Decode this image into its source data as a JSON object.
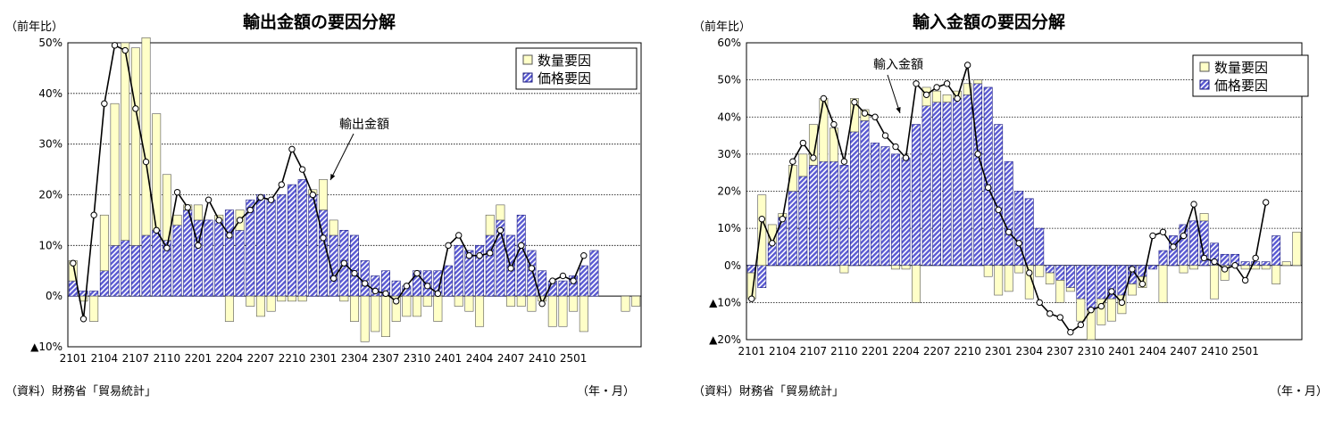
{
  "charts": [
    {
      "unit_label": "（前年比）",
      "source": "（資料）財務省「貿易統計」",
      "period_label": "（年・月）",
      "legend": [
        "数量要因",
        "価格要因"
      ],
      "annotation": "輸出金額"
    },
    {
      "unit_label": "（前年比）",
      "source": "（資料）財務省「貿易統計」",
      "period_label": "（年・月）",
      "legend": [
        "数量要因",
        "価格要因"
      ],
      "annotation": "輸入金額"
    }
  ],
  "colors": {
    "volume_fill": "#ffffc8",
    "price_fill": "#5a5ad2",
    "line": "#000000"
  },
  "chart_data": [
    {
      "type": "bar",
      "title": "輸出金額の要因分解",
      "x_tick_labels": [
        "2101",
        "2104",
        "2107",
        "2110",
        "2201",
        "2204",
        "2207",
        "2210",
        "2301",
        "2304",
        "2307",
        "2310",
        "2401",
        "2404",
        "2407",
        "2410",
        "2501"
      ],
      "ylim": [
        -10,
        50
      ],
      "y_ticks": [
        -10,
        0,
        10,
        20,
        30,
        40,
        50
      ],
      "y_tick_labels": [
        "▲10%",
        "0%",
        "10%",
        "20%",
        "30%",
        "40%",
        "50%"
      ],
      "grid": true,
      "legend_position": "top-right",
      "series": [
        {
          "name": "数量要因",
          "type": "bar",
          "values": [
            4,
            -1,
            -5,
            11,
            28,
            39,
            39,
            39,
            23,
            13,
            2,
            1,
            3,
            0,
            1,
            -5,
            4,
            -2,
            -4,
            -3,
            -1,
            -1,
            -1,
            1,
            6,
            3,
            -1,
            -5,
            -9,
            -7,
            -8,
            -5,
            -4,
            -4,
            -2,
            -5,
            0,
            -2,
            -3,
            -6,
            4,
            3,
            -2,
            -2,
            -3,
            -1,
            -6,
            -6,
            -3,
            -7,
            0,
            0,
            0,
            -3,
            -2
          ]
        },
        {
          "name": "価格要因",
          "type": "bar",
          "values": [
            3,
            1,
            1,
            5,
            10,
            11,
            10,
            12,
            13,
            11,
            14,
            17,
            15,
            15,
            15,
            17,
            13,
            19,
            20,
            19,
            20,
            22,
            23,
            20,
            17,
            12,
            13,
            12,
            7,
            4,
            5,
            3,
            2,
            5,
            5,
            5,
            6,
            10,
            9,
            10,
            12,
            15,
            12,
            16,
            9,
            5,
            3,
            3,
            4,
            6,
            9
          ]
        },
        {
          "name": "輸出金額",
          "type": "line",
          "values": [
            6.5,
            -4.5,
            16,
            38,
            49.5,
            48.5,
            37,
            26.5,
            13,
            9.5,
            20.5,
            17.5,
            10,
            19,
            15,
            12,
            15,
            17,
            19.5,
            19,
            22,
            29,
            25,
            20,
            11.5,
            3.5,
            6.5,
            4.5,
            2.5,
            1,
            0.5,
            -1,
            2,
            4.5,
            2,
            0.5,
            10,
            12,
            8,
            8,
            8.5,
            13,
            5.5,
            10,
            5.5,
            -1.5,
            3,
            4,
            3,
            8
          ]
        }
      ]
    },
    {
      "type": "bar",
      "title": "輸入金額の要因分解",
      "x_tick_labels": [
        "2101",
        "2104",
        "2107",
        "2110",
        "2201",
        "2204",
        "2207",
        "2210",
        "2301",
        "2304",
        "2307",
        "2310",
        "2401",
        "2404",
        "2407",
        "2410",
        "2501"
      ],
      "ylim": [
        -20,
        60
      ],
      "y_ticks": [
        -20,
        -10,
        0,
        10,
        20,
        30,
        40,
        50,
        60
      ],
      "y_tick_labels": [
        "▲20%",
        "▲10%",
        "0%",
        "10%",
        "20%",
        "30%",
        "40%",
        "50%",
        "60%"
      ],
      "grid": true,
      "legend_position": "top-right",
      "series": [
        {
          "name": "数量要因",
          "type": "bar",
          "values": [
            -7,
            19,
            5,
            1,
            7,
            6,
            11,
            17,
            9,
            -2,
            9,
            3,
            0,
            0,
            -1,
            -1,
            -10,
            5,
            3,
            2,
            2,
            3,
            1,
            -3,
            -8,
            -7,
            -2,
            -9,
            -3,
            -3,
            -6,
            -1,
            -6,
            -8,
            -7,
            -6,
            -5,
            -3,
            -3,
            0,
            -10,
            0,
            -2,
            -1,
            2,
            -9,
            -4,
            0,
            -1,
            -1,
            -1,
            -5,
            1,
            9
          ]
        },
        {
          "name": "価格要因",
          "type": "bar",
          "values": [
            -2,
            -6,
            6,
            13,
            20,
            24,
            27,
            28,
            28,
            27,
            36,
            39,
            33,
            32,
            30,
            29,
            38,
            43,
            44,
            44,
            45,
            46,
            49,
            48,
            38,
            28,
            20,
            18,
            10,
            -2,
            -4,
            -6,
            -9,
            -12,
            -9,
            -9,
            -8,
            -5,
            -3,
            -1,
            4,
            8,
            11,
            12,
            12,
            6,
            3,
            3,
            1,
            1,
            1,
            8
          ]
        },
        {
          "name": "輸入金額",
          "type": "line",
          "values": [
            -9,
            12.5,
            6,
            12.5,
            28,
            33,
            29,
            45,
            38,
            28,
            44,
            41,
            40,
            35,
            32,
            29,
            49,
            46,
            48,
            49,
            45,
            54,
            30,
            21,
            15,
            9,
            6,
            -2,
            -10,
            -13,
            -14,
            -18,
            -16,
            -12,
            -11,
            -7,
            -10,
            -1,
            -5,
            8,
            9,
            5,
            8,
            16.5,
            2,
            1,
            -1,
            0,
            -4,
            2,
            17
          ]
        }
      ]
    }
  ]
}
